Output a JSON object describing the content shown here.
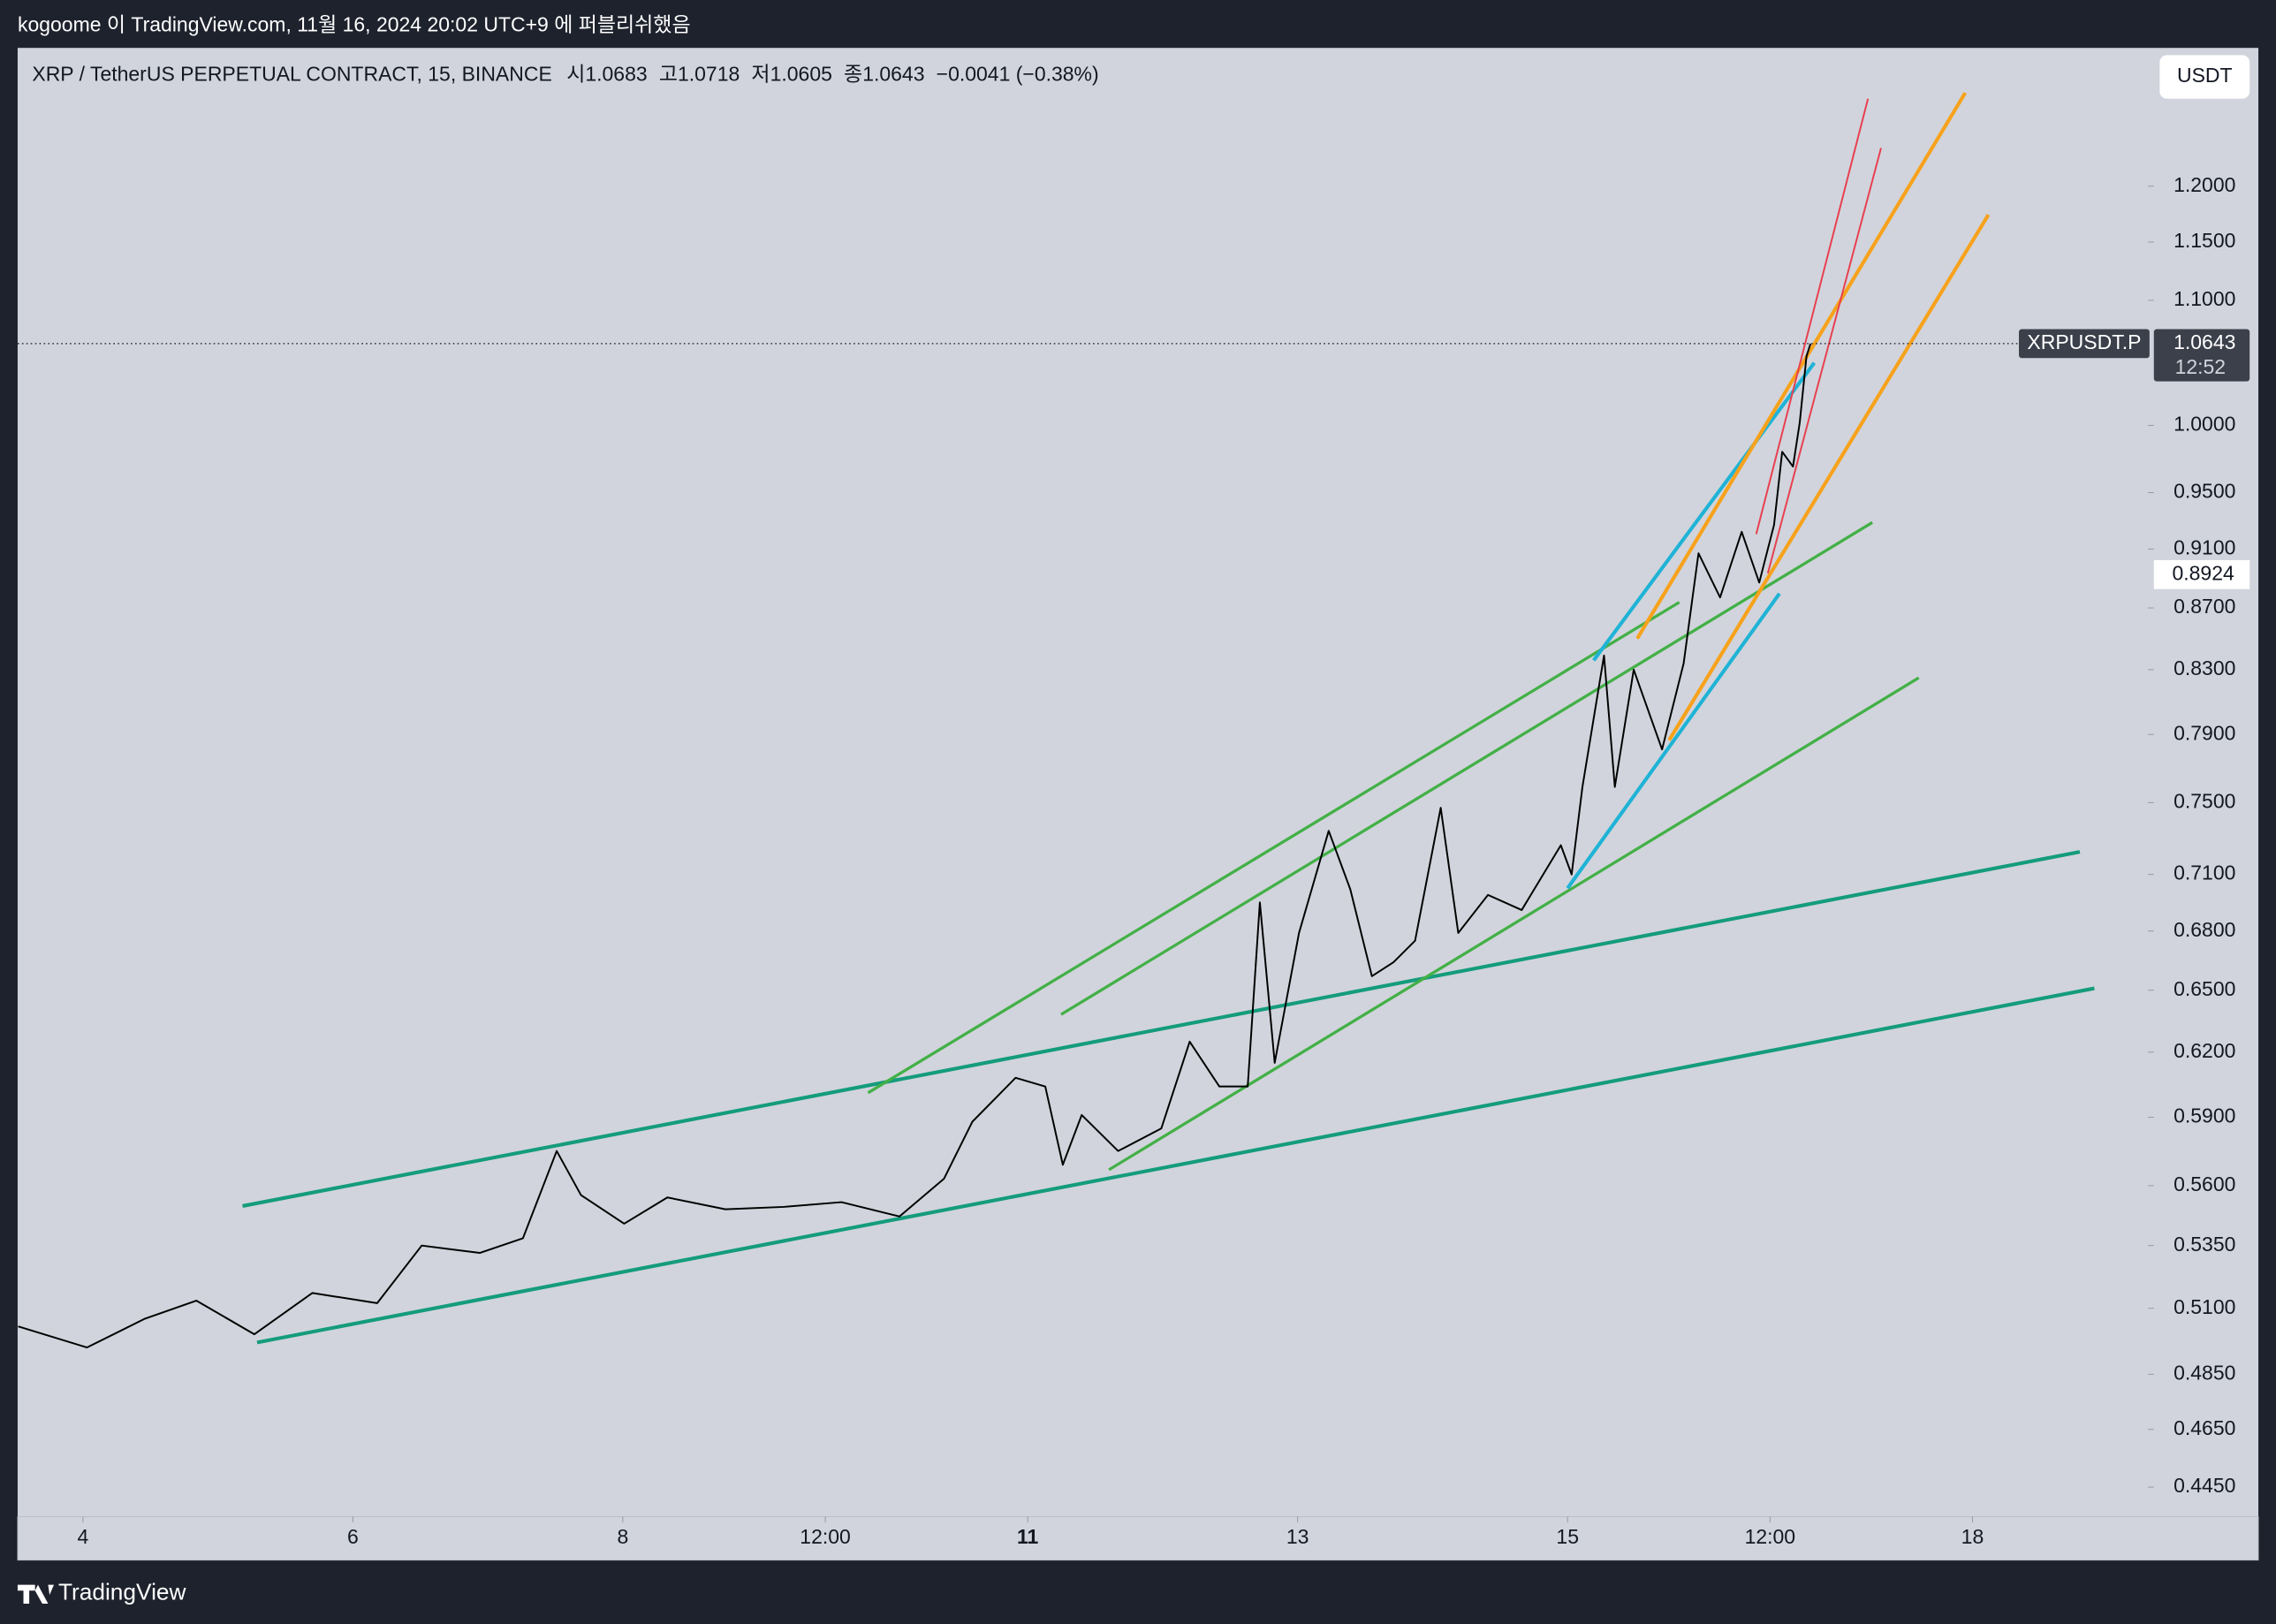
{
  "chart_data": {
    "type": "line",
    "watermark": "kogoome 이 TradingView.com, 11월 16, 2024 20:02 UTC+9 에 퍼블리쉬했음",
    "title": "XRP / TetherUS PERPETUAL CONTRACT, 15, BINANCE",
    "ohlc_labels": [
      "시",
      "고",
      "저",
      "종"
    ],
    "ohlc_values": [
      1.0683,
      1.0718,
      1.0605,
      1.0643
    ],
    "change": "−0.0041 (−0.38%)",
    "currency": "USDT",
    "symbol_label": "XRPUSDT.P",
    "last_price": 1.0643,
    "countdown": "12:52",
    "crosshair_price": 0.8924,
    "brand": "TradingView",
    "log_scale": true,
    "color": "#000000",
    "x": [
      3.52,
      4.03,
      4.46,
      4.84,
      5.27,
      5.7,
      6.18,
      6.51,
      6.94,
      7.26,
      7.51,
      7.69,
      8.01,
      8.33,
      8.76,
      9.19,
      9.62,
      10.05,
      10.38,
      10.59,
      10.91,
      11.13,
      11.26,
      11.4,
      11.67,
      11.99,
      12.2,
      12.42,
      12.63,
      12.72,
      12.83,
      13.01,
      13.23,
      13.39,
      13.55,
      13.71,
      13.87,
      14.06,
      14.19,
      14.41,
      14.66,
      14.95,
      15.03,
      15.11,
      15.27,
      15.35,
      15.49,
      15.7,
      15.86,
      15.97,
      16.13,
      16.29,
      16.42,
      16.53,
      16.59,
      16.67,
      16.72,
      16.77,
      16.8
    ],
    "values": [
      0.503,
      0.495,
      0.506,
      0.513,
      0.5,
      0.516,
      0.512,
      0.535,
      0.532,
      0.538,
      0.575,
      0.556,
      0.544,
      0.555,
      0.55,
      0.551,
      0.553,
      0.547,
      0.563,
      0.588,
      0.608,
      0.604,
      0.569,
      0.591,
      0.575,
      0.585,
      0.625,
      0.604,
      0.604,
      0.695,
      0.615,
      0.679,
      0.734,
      0.702,
      0.657,
      0.664,
      0.675,
      0.747,
      0.679,
      0.699,
      0.691,
      0.726,
      0.71,
      0.759,
      0.839,
      0.759,
      0.83,
      0.781,
      0.834,
      0.907,
      0.877,
      0.922,
      0.887,
      0.927,
      0.98,
      0.969,
      1.002,
      1.054,
      1.0643
    ],
    "xlim": [
      3.516,
      19.301
    ],
    "xticks": [
      4,
      6,
      8,
      {
        "value": 9.5,
        "label": "12:00"
      },
      11,
      13,
      15,
      {
        "value": 16.5,
        "label": "12:00"
      },
      18
    ],
    "ylim": [
      0.4351,
      1.3335
    ],
    "yticks": [
      {
        "value": 1.2,
        "label": "1.2000"
      },
      {
        "value": 1.15,
        "label": "1.1500"
      },
      {
        "value": 1.1,
        "label": "1.1000"
      },
      {
        "value": 1.0,
        "label": "1.0000"
      },
      {
        "value": 0.95,
        "label": "0.9500"
      },
      {
        "value": 0.91,
        "label": "0.9100"
      },
      {
        "value": 0.87,
        "label": "0.8700"
      },
      {
        "value": 0.83,
        "label": "0.8300"
      },
      {
        "value": 0.79,
        "label": "0.7900"
      },
      {
        "value": 0.75,
        "label": "0.7500"
      },
      {
        "value": 0.71,
        "label": "0.7100"
      },
      {
        "value": 0.68,
        "label": "0.6800"
      },
      {
        "value": 0.65,
        "label": "0.6500"
      },
      {
        "value": 0.62,
        "label": "0.6200"
      },
      {
        "value": 0.59,
        "label": "0.5900"
      },
      {
        "value": 0.56,
        "label": "0.5600"
      },
      {
        "value": 0.535,
        "label": "0.5350"
      },
      {
        "value": 0.51,
        "label": "0.5100"
      },
      {
        "value": 0.485,
        "label": "0.4850"
      },
      {
        "value": 0.465,
        "label": "0.4650"
      },
      {
        "value": 0.445,
        "label": "0.4450"
      }
    ]
  }
}
